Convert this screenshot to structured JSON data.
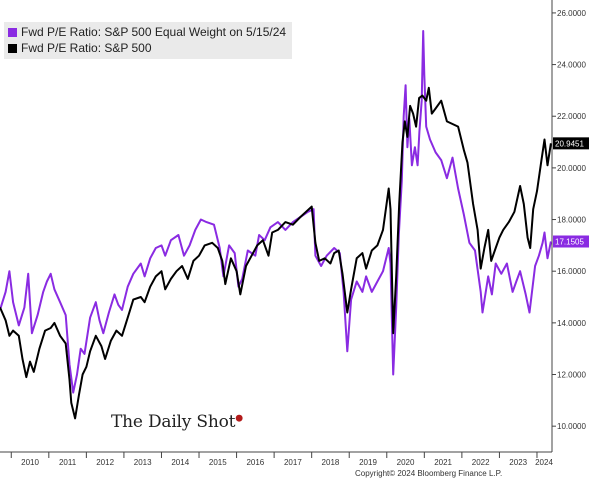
{
  "chart_data": {
    "type": "line",
    "x_start": 2009.7,
    "x_end": 2024.4,
    "x_ticks": [
      "2010",
      "2011",
      "2012",
      "2013",
      "2014",
      "2015",
      "2016",
      "2017",
      "2018",
      "2019",
      "2020",
      "2021",
      "2022",
      "2023",
      "2024"
    ],
    "y_ticks": [
      "10.0000",
      "12.0000",
      "14.0000",
      "16.0000",
      "18.0000",
      "20.0000",
      "22.0000",
      "24.0000",
      "26.0000"
    ],
    "ylim": [
      9.0,
      26.5
    ],
    "legend_position": "top-left",
    "grid": false,
    "series": [
      {
        "name": "Fwd P/E Ratio: S&P 500 Equal Weight on 5/15/24",
        "color": "#8a2be2",
        "last_value_label": "17.1505",
        "points": [
          [
            2009.7,
            14.5
          ],
          [
            2009.85,
            15.2
          ],
          [
            2009.95,
            16.0
          ],
          [
            2010.05,
            14.8
          ],
          [
            2010.2,
            13.9
          ],
          [
            2010.35,
            14.6
          ],
          [
            2010.45,
            15.9
          ],
          [
            2010.55,
            13.6
          ],
          [
            2010.7,
            14.3
          ],
          [
            2010.85,
            15.2
          ],
          [
            2010.95,
            15.6
          ],
          [
            2011.05,
            15.9
          ],
          [
            2011.15,
            15.3
          ],
          [
            2011.3,
            14.8
          ],
          [
            2011.45,
            14.3
          ],
          [
            2011.55,
            12.4
          ],
          [
            2011.65,
            11.3
          ],
          [
            2011.75,
            12.0
          ],
          [
            2011.85,
            13.0
          ],
          [
            2011.95,
            12.8
          ],
          [
            2012.1,
            14.2
          ],
          [
            2012.25,
            14.8
          ],
          [
            2012.35,
            14.1
          ],
          [
            2012.45,
            13.6
          ],
          [
            2012.6,
            14.4
          ],
          [
            2012.75,
            15.1
          ],
          [
            2012.85,
            14.7
          ],
          [
            2012.95,
            14.5
          ],
          [
            2013.1,
            15.4
          ],
          [
            2013.25,
            15.9
          ],
          [
            2013.45,
            16.3
          ],
          [
            2013.55,
            15.8
          ],
          [
            2013.7,
            16.5
          ],
          [
            2013.85,
            16.9
          ],
          [
            2014.0,
            17.0
          ],
          [
            2014.1,
            16.6
          ],
          [
            2014.25,
            17.2
          ],
          [
            2014.45,
            17.4
          ],
          [
            2014.6,
            16.6
          ],
          [
            2014.75,
            17.0
          ],
          [
            2014.9,
            17.6
          ],
          [
            2015.05,
            18.0
          ],
          [
            2015.2,
            17.9
          ],
          [
            2015.4,
            17.8
          ],
          [
            2015.55,
            16.9
          ],
          [
            2015.65,
            15.8
          ],
          [
            2015.8,
            17.0
          ],
          [
            2015.95,
            16.7
          ],
          [
            2016.05,
            15.4
          ],
          [
            2016.15,
            15.7
          ],
          [
            2016.3,
            16.8
          ],
          [
            2016.5,
            16.6
          ],
          [
            2016.6,
            17.4
          ],
          [
            2016.75,
            17.2
          ],
          [
            2016.9,
            17.7
          ],
          [
            2017.1,
            17.9
          ],
          [
            2017.3,
            17.6
          ],
          [
            2017.5,
            17.9
          ],
          [
            2017.7,
            18.1
          ],
          [
            2017.9,
            18.3
          ],
          [
            2018.05,
            18.4
          ],
          [
            2018.1,
            16.6
          ],
          [
            2018.25,
            16.2
          ],
          [
            2018.4,
            16.6
          ],
          [
            2018.6,
            16.9
          ],
          [
            2018.75,
            16.7
          ],
          [
            2018.85,
            15.2
          ],
          [
            2018.95,
            12.9
          ],
          [
            2019.05,
            14.9
          ],
          [
            2019.2,
            15.6
          ],
          [
            2019.35,
            15.2
          ],
          [
            2019.45,
            15.8
          ],
          [
            2019.6,
            15.2
          ],
          [
            2019.75,
            15.6
          ],
          [
            2019.9,
            16.0
          ],
          [
            2020.05,
            16.9
          ],
          [
            2020.1,
            16.3
          ],
          [
            2020.17,
            12.0
          ],
          [
            2020.25,
            14.6
          ],
          [
            2020.32,
            17.4
          ],
          [
            2020.4,
            19.5
          ],
          [
            2020.45,
            22.0
          ],
          [
            2020.5,
            23.2
          ],
          [
            2020.55,
            20.8
          ],
          [
            2020.6,
            21.9
          ],
          [
            2020.67,
            20.1
          ],
          [
            2020.75,
            20.8
          ],
          [
            2020.82,
            20.1
          ],
          [
            2020.87,
            21.4
          ],
          [
            2020.93,
            22.6
          ],
          [
            2020.97,
            25.3
          ],
          [
            2021.0,
            23.6
          ],
          [
            2021.05,
            21.6
          ],
          [
            2021.15,
            21.1
          ],
          [
            2021.3,
            20.6
          ],
          [
            2021.45,
            20.3
          ],
          [
            2021.6,
            19.6
          ],
          [
            2021.75,
            20.4
          ],
          [
            2021.9,
            19.2
          ],
          [
            2022.05,
            18.2
          ],
          [
            2022.2,
            17.1
          ],
          [
            2022.35,
            16.8
          ],
          [
            2022.5,
            15.2
          ],
          [
            2022.55,
            14.4
          ],
          [
            2022.7,
            15.8
          ],
          [
            2022.8,
            15.1
          ],
          [
            2022.9,
            16.3
          ],
          [
            2023.05,
            15.9
          ],
          [
            2023.2,
            16.3
          ],
          [
            2023.35,
            15.2
          ],
          [
            2023.45,
            15.6
          ],
          [
            2023.55,
            16.0
          ],
          [
            2023.7,
            15.1
          ],
          [
            2023.8,
            14.4
          ],
          [
            2023.95,
            16.2
          ],
          [
            2024.05,
            16.6
          ],
          [
            2024.15,
            17.1
          ],
          [
            2024.2,
            17.5
          ],
          [
            2024.28,
            16.5
          ],
          [
            2024.37,
            17.15
          ]
        ]
      },
      {
        "name": "Fwd P/E Ratio: S&P 500",
        "color": "#000000",
        "last_value_label": "20.9451",
        "points": [
          [
            2009.7,
            14.6
          ],
          [
            2009.85,
            14.1
          ],
          [
            2009.95,
            13.5
          ],
          [
            2010.05,
            13.7
          ],
          [
            2010.2,
            13.5
          ],
          [
            2010.3,
            12.6
          ],
          [
            2010.4,
            11.9
          ],
          [
            2010.5,
            12.5
          ],
          [
            2010.6,
            12.1
          ],
          [
            2010.75,
            13.0
          ],
          [
            2010.9,
            13.7
          ],
          [
            2011.05,
            13.8
          ],
          [
            2011.15,
            14.0
          ],
          [
            2011.3,
            13.5
          ],
          [
            2011.45,
            13.2
          ],
          [
            2011.55,
            11.8
          ],
          [
            2011.6,
            10.9
          ],
          [
            2011.7,
            10.3
          ],
          [
            2011.8,
            11.2
          ],
          [
            2011.9,
            12.0
          ],
          [
            2012.0,
            12.3
          ],
          [
            2012.1,
            12.9
          ],
          [
            2012.25,
            13.5
          ],
          [
            2012.4,
            13.1
          ],
          [
            2012.5,
            12.6
          ],
          [
            2012.65,
            13.3
          ],
          [
            2012.8,
            13.7
          ],
          [
            2012.95,
            13.5
          ],
          [
            2013.1,
            14.2
          ],
          [
            2013.25,
            14.9
          ],
          [
            2013.45,
            15.0
          ],
          [
            2013.55,
            14.8
          ],
          [
            2013.7,
            15.4
          ],
          [
            2013.85,
            15.8
          ],
          [
            2014.0,
            16.0
          ],
          [
            2014.1,
            15.3
          ],
          [
            2014.25,
            15.7
          ],
          [
            2014.4,
            16.0
          ],
          [
            2014.55,
            16.2
          ],
          [
            2014.7,
            15.7
          ],
          [
            2014.85,
            16.4
          ],
          [
            2015.0,
            16.6
          ],
          [
            2015.15,
            17.0
          ],
          [
            2015.35,
            17.1
          ],
          [
            2015.5,
            16.9
          ],
          [
            2015.62,
            16.4
          ],
          [
            2015.7,
            15.5
          ],
          [
            2015.85,
            16.5
          ],
          [
            2016.0,
            16.0
          ],
          [
            2016.1,
            15.1
          ],
          [
            2016.25,
            16.2
          ],
          [
            2016.4,
            16.6
          ],
          [
            2016.55,
            17.0
          ],
          [
            2016.7,
            17.2
          ],
          [
            2016.85,
            16.6
          ],
          [
            2016.95,
            17.5
          ],
          [
            2017.1,
            17.6
          ],
          [
            2017.3,
            17.9
          ],
          [
            2017.5,
            17.8
          ],
          [
            2017.7,
            18.1
          ],
          [
            2017.85,
            18.3
          ],
          [
            2018.0,
            18.5
          ],
          [
            2018.1,
            17.1
          ],
          [
            2018.2,
            16.4
          ],
          [
            2018.35,
            16.5
          ],
          [
            2018.5,
            16.3
          ],
          [
            2018.6,
            16.7
          ],
          [
            2018.72,
            16.8
          ],
          [
            2018.82,
            15.9
          ],
          [
            2018.95,
            14.4
          ],
          [
            2019.05,
            15.3
          ],
          [
            2019.2,
            16.5
          ],
          [
            2019.35,
            16.7
          ],
          [
            2019.45,
            16.1
          ],
          [
            2019.6,
            16.8
          ],
          [
            2019.75,
            17.0
          ],
          [
            2019.9,
            17.6
          ],
          [
            2020.05,
            19.2
          ],
          [
            2020.1,
            18.4
          ],
          [
            2020.17,
            13.6
          ],
          [
            2020.25,
            15.8
          ],
          [
            2020.33,
            18.6
          ],
          [
            2020.42,
            21.0
          ],
          [
            2020.48,
            21.8
          ],
          [
            2020.55,
            21.2
          ],
          [
            2020.62,
            22.4
          ],
          [
            2020.7,
            22.1
          ],
          [
            2020.78,
            21.6
          ],
          [
            2020.86,
            22.7
          ],
          [
            2020.95,
            22.8
          ],
          [
            2021.05,
            22.6
          ],
          [
            2021.12,
            23.1
          ],
          [
            2021.2,
            22.1
          ],
          [
            2021.3,
            22.3
          ],
          [
            2021.45,
            22.6
          ],
          [
            2021.6,
            21.8
          ],
          [
            2021.75,
            21.7
          ],
          [
            2021.9,
            21.6
          ],
          [
            2022.05,
            20.7
          ],
          [
            2022.15,
            20.2
          ],
          [
            2022.3,
            18.6
          ],
          [
            2022.42,
            17.6
          ],
          [
            2022.5,
            16.1
          ],
          [
            2022.6,
            16.9
          ],
          [
            2022.7,
            17.6
          ],
          [
            2022.78,
            16.4
          ],
          [
            2022.9,
            16.9
          ],
          [
            2023.0,
            17.3
          ],
          [
            2023.1,
            17.6
          ],
          [
            2023.25,
            17.9
          ],
          [
            2023.4,
            18.3
          ],
          [
            2023.55,
            19.3
          ],
          [
            2023.65,
            18.6
          ],
          [
            2023.75,
            17.3
          ],
          [
            2023.82,
            16.9
          ],
          [
            2023.9,
            18.4
          ],
          [
            2024.0,
            19.1
          ],
          [
            2024.1,
            20.1
          ],
          [
            2024.2,
            21.1
          ],
          [
            2024.28,
            20.1
          ],
          [
            2024.37,
            20.95
          ]
        ]
      }
    ]
  },
  "legend": {
    "item1_label": "Fwd P/E Ratio: S&P 500 Equal Weight on 5/15/24",
    "item2_label": "Fwd P/E Ratio: S&P 500"
  },
  "watermark": "The Daily Shot",
  "copyright": "Copyright© 2024 Bloomberg Finance L.P."
}
